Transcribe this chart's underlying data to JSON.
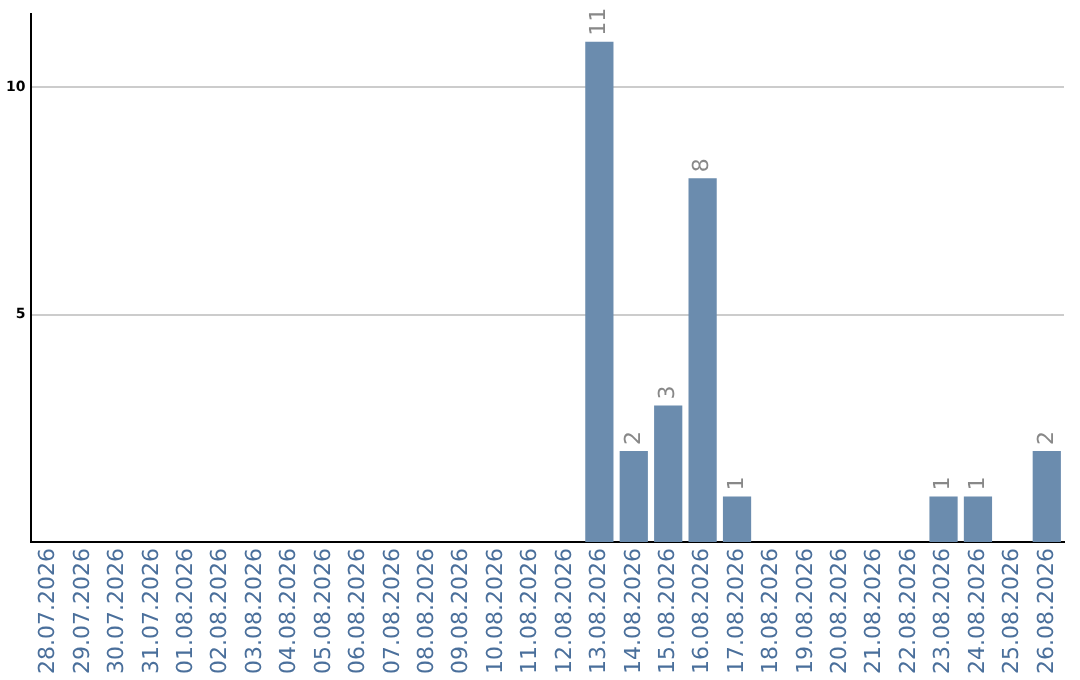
{
  "chart_data": {
    "type": "bar",
    "categories": [
      "28.07.2026",
      "29.07.2026",
      "30.07.2026",
      "31.07.2026",
      "01.08.2026",
      "02.08.2026",
      "03.08.2026",
      "04.08.2026",
      "05.08.2026",
      "06.08.2026",
      "07.08.2026",
      "08.08.2026",
      "09.08.2026",
      "10.08.2026",
      "11.08.2026",
      "12.08.2026",
      "13.08.2026",
      "14.08.2026",
      "15.08.2026",
      "16.08.2026",
      "17.08.2026",
      "18.08.2026",
      "19.08.2026",
      "20.08.2026",
      "21.08.2026",
      "22.08.2026",
      "23.08.2026",
      "24.08.2026",
      "25.08.2026",
      "26.08.2026"
    ],
    "values": [
      0,
      0,
      0,
      0,
      0,
      0,
      0,
      0,
      0,
      0,
      0,
      0,
      0,
      0,
      0,
      0,
      11,
      2,
      3,
      8,
      1,
      0,
      0,
      0,
      0,
      0,
      1,
      1,
      0,
      2
    ],
    "value_labels": [
      null,
      null,
      null,
      null,
      null,
      null,
      null,
      null,
      null,
      null,
      null,
      null,
      null,
      null,
      null,
      null,
      "11",
      "2",
      "3",
      "8",
      "1",
      null,
      null,
      null,
      null,
      null,
      "1",
      "1",
      null,
      "2"
    ],
    "color": "#6b8cae",
    "ylim": [
      0,
      11.6
    ],
    "yticks": [
      5,
      10
    ],
    "grid": "y",
    "legend": false
  }
}
